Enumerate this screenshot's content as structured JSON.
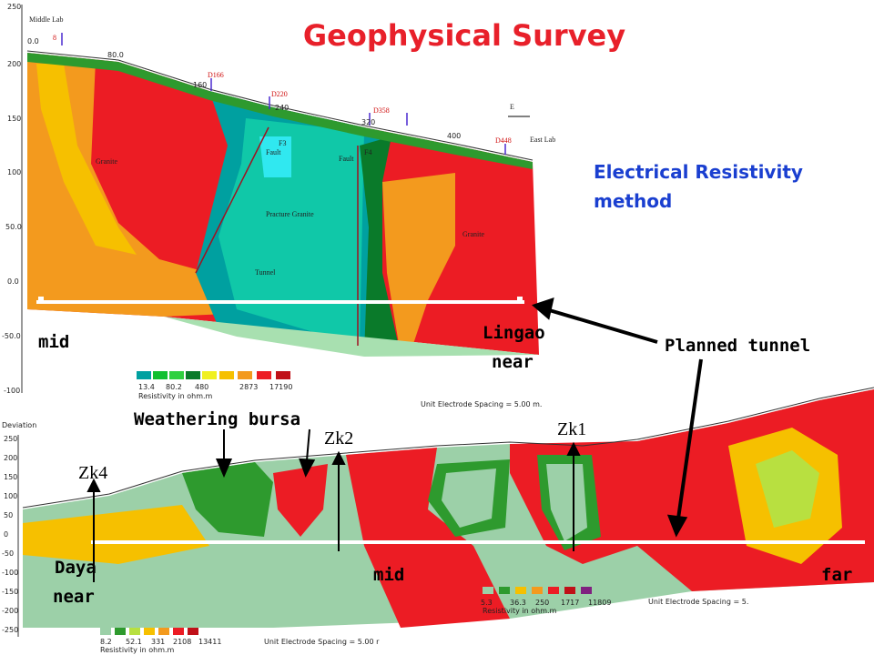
{
  "title": "Geophysical Survey",
  "method": [
    "Electrical Resistivity",
    "method"
  ],
  "annotations": {
    "planned_tunnel": "Planned tunnel",
    "mid_upper": "mid",
    "lingao": [
      "Lingao",
      "near"
    ],
    "weathering": "Weathering bursa",
    "daya": [
      "Daya",
      "near"
    ],
    "mid_lower": "mid",
    "far": "far"
  },
  "upper_section": {
    "y_axis": [
      "250",
      "200",
      "150",
      "100",
      "50.0",
      "0.0",
      "-50.0",
      "-100"
    ],
    "sites": [
      "Middle Lab",
      "East Lab"
    ],
    "direction": "E",
    "stations": [
      "0.0",
      "80.0",
      "160",
      "240",
      "320",
      "400"
    ],
    "drills": [
      "8",
      "D166",
      "D220",
      "D358",
      "D448"
    ],
    "zones": [
      "Granite",
      "F3",
      "Fault",
      "F4",
      "Fault",
      "Practure Granite",
      "Granite",
      "Tunnel"
    ],
    "legend": {
      "values": [
        "13.4",
        "80.2",
        "480",
        "2873",
        "17190"
      ],
      "caption": "Resistivity in ohm.m"
    },
    "spacing": "Unit Electrode Spacing = 5.00 m."
  },
  "lower_section": {
    "axis_title": "Deviation",
    "y_axis": [
      "250",
      "200",
      "150",
      "100",
      "50",
      "0",
      "-50",
      "-100",
      "-150",
      "-200",
      "-250"
    ],
    "boreholes": [
      "Zk4",
      "Zk2",
      "Zk1"
    ],
    "legend_right": {
      "values": [
        "5.3",
        "36.3",
        "250",
        "1717",
        "11809"
      ],
      "caption": "Resistivity in ohm.m",
      "spacing": "Unit Electrode Spacing = 5."
    },
    "legend_left": {
      "values": [
        "8.2",
        "52.1",
        "331",
        "2108",
        "13411"
      ],
      "caption": "Resistivity in ohm.m",
      "spacing": "Unit Electrode Spacing = 5.00 r"
    }
  }
}
